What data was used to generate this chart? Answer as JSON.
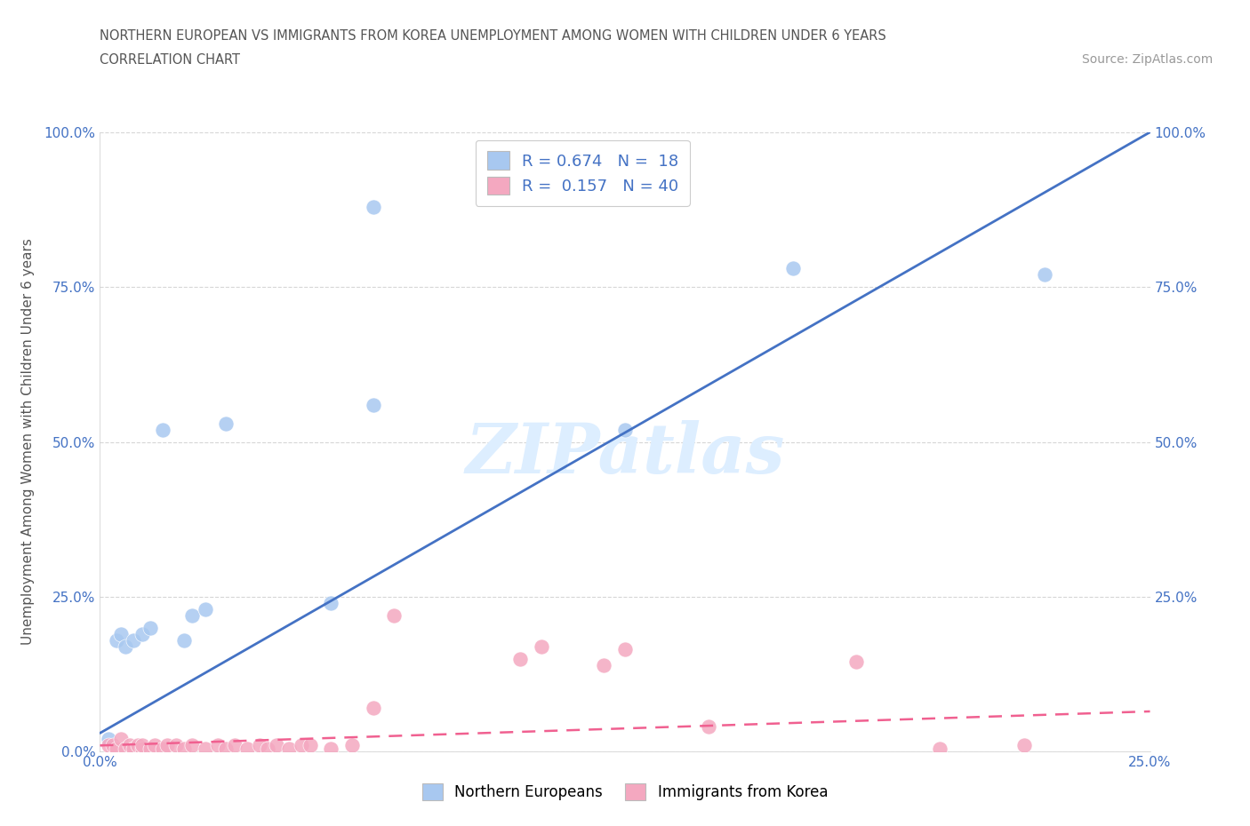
{
  "title_line1": "NORTHERN EUROPEAN VS IMMIGRANTS FROM KOREA UNEMPLOYMENT AMONG WOMEN WITH CHILDREN UNDER 6 YEARS",
  "title_line2": "CORRELATION CHART",
  "source_text": "Source: ZipAtlas.com",
  "ylabel": "Unemployment Among Women with Children Under 6 years",
  "xlim": [
    0,
    0.25
  ],
  "ylim": [
    0,
    1.0
  ],
  "blue_R": 0.674,
  "blue_N": 18,
  "pink_R": 0.157,
  "pink_N": 40,
  "blue_color": "#a8c8f0",
  "pink_color": "#f4a8c0",
  "blue_line_color": "#4472c4",
  "pink_line_color": "#f06090",
  "watermark": "ZIPatlas",
  "watermark_color": "#ddeeff",
  "blue_scatter_x": [
    0.002,
    0.004,
    0.005,
    0.006,
    0.008,
    0.01,
    0.012,
    0.015,
    0.02,
    0.022,
    0.025,
    0.03,
    0.055,
    0.065,
    0.065,
    0.125,
    0.165,
    0.225
  ],
  "blue_scatter_y": [
    0.02,
    0.18,
    0.19,
    0.17,
    0.18,
    0.19,
    0.2,
    0.52,
    0.18,
    0.22,
    0.23,
    0.53,
    0.24,
    0.56,
    0.88,
    0.52,
    0.78,
    0.77
  ],
  "pink_scatter_x": [
    0.002,
    0.003,
    0.004,
    0.005,
    0.006,
    0.007,
    0.008,
    0.009,
    0.01,
    0.01,
    0.012,
    0.013,
    0.015,
    0.016,
    0.018,
    0.02,
    0.022,
    0.025,
    0.028,
    0.03,
    0.032,
    0.035,
    0.038,
    0.04,
    0.042,
    0.045,
    0.048,
    0.05,
    0.055,
    0.06,
    0.065,
    0.07,
    0.1,
    0.105,
    0.12,
    0.125,
    0.145,
    0.18,
    0.2,
    0.22
  ],
  "pink_scatter_y": [
    0.01,
    0.01,
    0.005,
    0.02,
    0.005,
    0.01,
    0.005,
    0.01,
    0.005,
    0.01,
    0.005,
    0.01,
    0.005,
    0.01,
    0.01,
    0.005,
    0.01,
    0.005,
    0.01,
    0.005,
    0.01,
    0.005,
    0.01,
    0.005,
    0.01,
    0.005,
    0.01,
    0.01,
    0.005,
    0.01,
    0.07,
    0.22,
    0.15,
    0.17,
    0.14,
    0.165,
    0.04,
    0.145,
    0.005,
    0.01
  ],
  "blue_line_x": [
    0.0,
    0.25
  ],
  "blue_line_y": [
    0.03,
    1.0
  ],
  "pink_line_x": [
    0.0,
    0.25
  ],
  "pink_line_y": [
    0.01,
    0.065
  ],
  "grid_color": "#cccccc",
  "background_color": "#ffffff",
  "legend_blue_label": "R = 0.674   N =  18",
  "legend_pink_label": "R =  0.157   N = 40",
  "legend_blue_label_color": "#4472c4",
  "legend_pink_label_color": "#4472c4"
}
